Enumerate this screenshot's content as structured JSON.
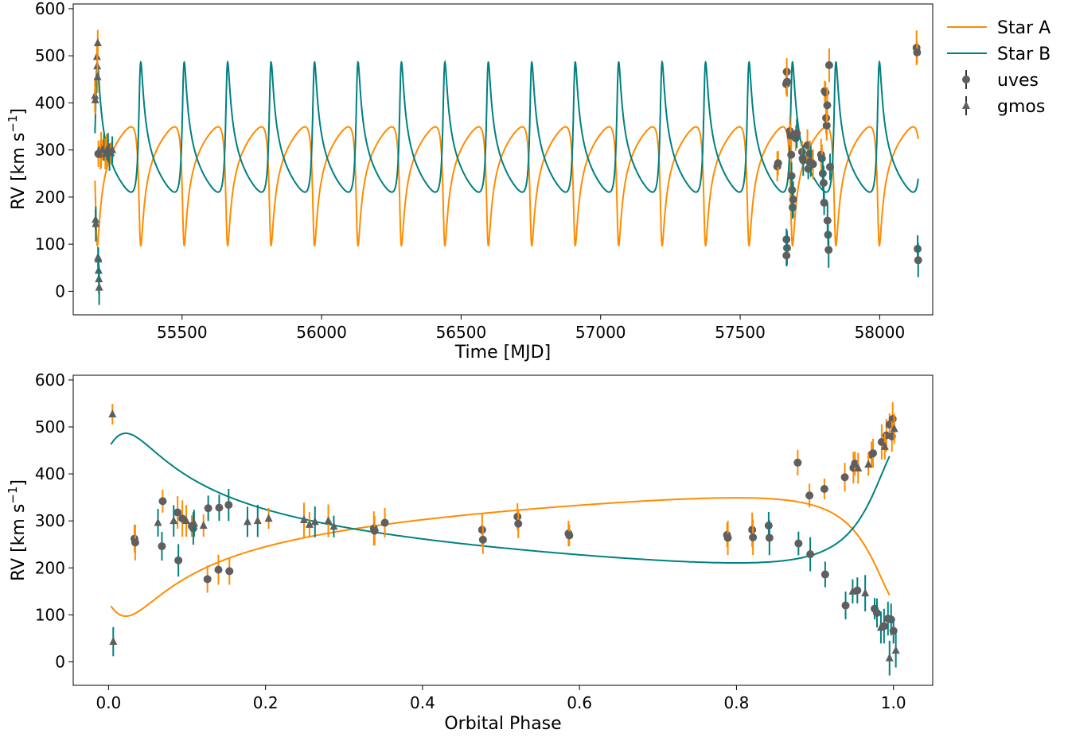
{
  "colors": {
    "star_a": "#ff8c00",
    "star_b": "#008080",
    "points": "#5f5f5f"
  },
  "legend": {
    "placement": "outside-right",
    "entries": [
      {
        "label": "Star A",
        "kind": "line",
        "color": "#ff8c00"
      },
      {
        "label": "Star B",
        "kind": "line",
        "color": "#008080"
      },
      {
        "label": "uves",
        "kind": "marker-circle",
        "color": "#5f5f5f"
      },
      {
        "label": "gmos",
        "kind": "marker-triangle",
        "color": "#5f5f5f"
      }
    ]
  },
  "chart_data": [
    {
      "type": "line",
      "xlabel": "Time [MJD]",
      "ylabel": "RV [km s⁻¹]",
      "xlim": [
        5110,
        8190
      ],
      "ylim": [
        -50,
        610
      ],
      "xticks": [
        55500,
        56000,
        56500,
        57000,
        57500,
        58000
      ],
      "xtick_labels": [
        "55500",
        "56000",
        "56500",
        "57000",
        "57500",
        "58000"
      ],
      "yticks": [
        0,
        100,
        200,
        300,
        400,
        500,
        600
      ],
      "ytick_labels": [
        "0",
        "100",
        "200",
        "300",
        "400",
        "500",
        "600"
      ],
      "model": {
        "period": 155.7,
        "t_periastron": 5193,
        "gamma": 283,
        "K_a": 126,
        "K_b": 138,
        "ecc": 0.62,
        "omega_deg": 140,
        "t_start": 5188,
        "t_end": 8138
      },
      "series": [
        {
          "name": "Star A",
          "kind": "model"
        },
        {
          "name": "Star B",
          "kind": "model"
        },
        {
          "name": "uves",
          "kind": "points",
          "marker": "circle",
          "points": [
            [
              5200,
              292,
              "a"
            ],
            [
              5210,
              300,
              "a"
            ],
            [
              5220,
              305,
              "b"
            ],
            [
              5230,
              296,
              "a"
            ],
            [
              5240,
              285,
              "b"
            ],
            [
              7633,
              265,
              "a"
            ],
            [
              7636,
              272,
              "a"
            ],
            [
              7665,
              440,
              "a"
            ],
            [
              7667,
              466,
              "a"
            ],
            [
              7668,
              445,
              "a"
            ],
            [
              7666,
              110,
              "b"
            ],
            [
              7668,
              92,
              "b"
            ],
            [
              7666,
              76,
              "b"
            ],
            [
              7678,
              340,
              "a"
            ],
            [
              7681,
              330,
              "a"
            ],
            [
              7683,
              290,
              "a"
            ],
            [
              7684,
              245,
              "b"
            ],
            [
              7686,
              215,
              "b"
            ],
            [
              7688,
              178,
              "b"
            ],
            [
              7690,
              195,
              "b"
            ],
            [
              7699,
              325,
              "a"
            ],
            [
              7703,
              335,
              "b"
            ],
            [
              7722,
              296,
              "a"
            ],
            [
              7724,
              282,
              "a"
            ],
            [
              7726,
              278,
              "b"
            ],
            [
              7741,
              310,
              "a"
            ],
            [
              7744,
              260,
              "b"
            ],
            [
              7750,
              292,
              "a"
            ],
            [
              7753,
              276,
              "b"
            ],
            [
              7761,
              270,
              "a"
            ],
            [
              7790,
              290,
              "a"
            ],
            [
              7793,
              282,
              "a"
            ],
            [
              7796,
              250,
              "b"
            ],
            [
              7799,
              230,
              "b"
            ],
            [
              7801,
              188,
              "b"
            ],
            [
              7803,
              425,
              "a"
            ],
            [
              7806,
              422,
              "a"
            ],
            [
              7808,
              368,
              "a"
            ],
            [
              7810,
              352,
              "a"
            ],
            [
              7812,
              395,
              "a"
            ],
            [
              7813,
              150,
              "b"
            ],
            [
              7815,
              120,
              "b"
            ],
            [
              7817,
              88,
              "b"
            ],
            [
              7819,
              480,
              "a"
            ],
            [
              7822,
              264,
              "b"
            ],
            [
              8132,
              517,
              "a"
            ],
            [
              8134,
              507,
              "a"
            ],
            [
              8136,
              90,
              "b"
            ],
            [
              8138,
              66,
              "b"
            ]
          ]
        },
        {
          "name": "gmos",
          "kind": "points",
          "marker": "triangle",
          "points": [
            [
              5188,
              415,
              "a"
            ],
            [
              5189,
              406,
              "a"
            ],
            [
              5190,
              152,
              "b"
            ],
            [
              5191,
              143,
              "b"
            ],
            [
              5195,
              498,
              "a"
            ],
            [
              5196,
              478,
              "a"
            ],
            [
              5197,
              455,
              "a"
            ],
            [
              5198,
              527,
              "a"
            ],
            [
              5199,
              72,
              "b"
            ],
            [
              5200,
              68,
              "b"
            ],
            [
              5201,
              44,
              "b"
            ],
            [
              5202,
              26,
              "b"
            ],
            [
              5203,
              8,
              "b"
            ],
            [
              5208,
              290,
              "a"
            ],
            [
              5215,
              300,
              "a"
            ],
            [
              5225,
              292,
              "a"
            ],
            [
              5235,
              305,
              "b"
            ],
            [
              5245,
              294,
              "a"
            ],
            [
              5250,
              300,
              "b"
            ]
          ]
        }
      ]
    },
    {
      "type": "line",
      "xlabel": "Orbital Phase",
      "ylabel": "RV [km s⁻¹]",
      "xlim": [
        -0.045,
        1.05
      ],
      "ylim": [
        -50,
        610
      ],
      "xticks": [
        0.0,
        0.2,
        0.4,
        0.6,
        0.8,
        1.0
      ],
      "xtick_labels": [
        "0.0",
        "0.2",
        "0.4",
        "0.6",
        "0.8",
        "1.0"
      ],
      "yticks": [
        0,
        100,
        200,
        300,
        400,
        500,
        600
      ],
      "ytick_labels": [
        "0",
        "100",
        "200",
        "300",
        "400",
        "500",
        "600"
      ],
      "model": {
        "gamma": 283,
        "K_a": 126,
        "K_b": 138,
        "ecc": 0.62,
        "omega_deg": 140,
        "phase_start": 0.003,
        "phase_end": 0.997
      },
      "series": [
        {
          "name": "Star A",
          "kind": "model"
        },
        {
          "name": "Star B",
          "kind": "model"
        },
        {
          "name": "uves",
          "kind": "points",
          "marker": "circle",
          "points": [
            [
              0.033,
              262,
              "a"
            ],
            [
              0.034,
              254,
              "a"
            ],
            [
              0.069,
              342,
              "a"
            ],
            [
              0.068,
              246,
              "b"
            ],
            [
              0.088,
              318,
              "a"
            ],
            [
              0.089,
              216,
              "b"
            ],
            [
              0.094,
              305,
              "a"
            ],
            [
              0.106,
              289,
              "a"
            ],
            [
              0.108,
              284,
              "b"
            ],
            [
              0.127,
              327,
              "b"
            ],
            [
              0.126,
              176,
              "a"
            ],
            [
              0.141,
              328,
              "b"
            ],
            [
              0.14,
              196,
              "a"
            ],
            [
              0.153,
              334,
              "b"
            ],
            [
              0.154,
              193,
              "a"
            ],
            [
              0.338,
              284,
              "a"
            ],
            [
              0.339,
              279,
              "a"
            ],
            [
              0.352,
              296,
              "a"
            ],
            [
              0.476,
              281,
              "a"
            ],
            [
              0.477,
              260,
              "a"
            ],
            [
              0.521,
              309,
              "a"
            ],
            [
              0.522,
              294,
              "a"
            ],
            [
              0.586,
              273,
              "a"
            ],
            [
              0.587,
              269,
              "a"
            ],
            [
              0.788,
              270,
              "a"
            ],
            [
              0.789,
              264,
              "a"
            ],
            [
              0.82,
              281,
              "a"
            ],
            [
              0.821,
              265,
              "a"
            ],
            [
              0.841,
              290,
              "b"
            ],
            [
              0.842,
              264,
              "b"
            ],
            [
              0.878,
              424,
              "a"
            ],
            [
              0.879,
              252,
              "b"
            ],
            [
              0.893,
              354,
              "a"
            ],
            [
              0.894,
              229,
              "b"
            ],
            [
              0.912,
              368,
              "a"
            ],
            [
              0.913,
              186,
              "b"
            ],
            [
              0.938,
              393,
              "a"
            ],
            [
              0.939,
              120,
              "b"
            ],
            [
              0.949,
              413,
              "a"
            ],
            [
              0.951,
              422,
              "a"
            ],
            [
              0.954,
              152,
              "b"
            ],
            [
              0.972,
              441,
              "a"
            ],
            [
              0.974,
              444,
              "a"
            ],
            [
              0.976,
              113,
              "b"
            ],
            [
              0.979,
              104,
              "b"
            ],
            [
              0.985,
              468,
              "a"
            ],
            [
              0.988,
              76,
              "b"
            ],
            [
              0.991,
              482,
              "a"
            ],
            [
              0.993,
              92,
              "b"
            ],
            [
              0.995,
              505,
              "a"
            ],
            [
              0.997,
              90,
              "b"
            ],
            [
              0.999,
              517,
              "a"
            ],
            [
              1.0,
              66,
              "b"
            ],
            [
              0.998,
              480,
              "a"
            ]
          ]
        },
        {
          "name": "gmos",
          "kind": "points",
          "marker": "triangle",
          "points": [
            [
              0.005,
              527,
              "a"
            ],
            [
              0.006,
              43,
              "b"
            ],
            [
              0.063,
              296,
              "b"
            ],
            [
              0.083,
              300,
              "b"
            ],
            [
              0.099,
              300,
              "a"
            ],
            [
              0.109,
              295,
              "b"
            ],
            [
              0.121,
              290,
              "a"
            ],
            [
              0.177,
              298,
              "b"
            ],
            [
              0.19,
              300,
              "b"
            ],
            [
              0.204,
              305,
              "a"
            ],
            [
              0.249,
              302,
              "a"
            ],
            [
              0.256,
              292,
              "a"
            ],
            [
              0.263,
              298,
              "b"
            ],
            [
              0.28,
              300,
              "a"
            ],
            [
              0.287,
              288,
              "b"
            ],
            [
              0.948,
              150,
              "b"
            ],
            [
              0.955,
              412,
              "a"
            ],
            [
              0.964,
              146,
              "b"
            ],
            [
              0.968,
              420,
              "a"
            ],
            [
              0.984,
              73,
              "b"
            ],
            [
              0.989,
              458,
              "a"
            ],
            [
              0.995,
              8,
              "b"
            ],
            [
              1.001,
              496,
              "a"
            ],
            [
              1.003,
              24,
              "b"
            ]
          ]
        }
      ]
    }
  ]
}
